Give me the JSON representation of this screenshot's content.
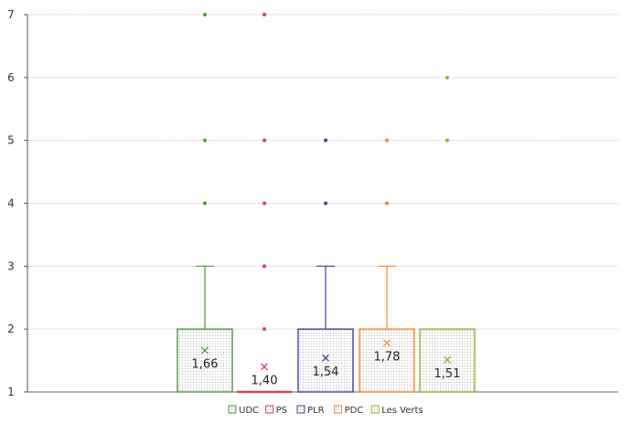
{
  "chart_data": {
    "type": "box",
    "title": "",
    "xlabel": "",
    "ylabel": "",
    "ylim": [
      1,
      7
    ],
    "y_ticks": [
      "1",
      "2",
      "3",
      "4",
      "5",
      "6",
      "7"
    ],
    "grid": "horizontal",
    "legend_position": "bottom-center",
    "series": [
      {
        "name": "UDC",
        "color": "#4a9a3c",
        "q1": 1,
        "median": 1,
        "q3": 2,
        "whisker_low": 1,
        "whisker_high": 3,
        "mean": 1.66,
        "mean_label": "1,66",
        "outliers": [
          4,
          5,
          7
        ]
      },
      {
        "name": "PS",
        "color": "#d94055",
        "q1": 1,
        "median": 1,
        "q3": 1,
        "whisker_low": 1,
        "whisker_high": 1,
        "mean": 1.4,
        "mean_label": "1,40",
        "outliers": [
          2,
          3,
          4,
          5,
          7
        ]
      },
      {
        "name": "PLR",
        "color": "#3c3fa0",
        "q1": 1,
        "median": 1,
        "q3": 2,
        "whisker_low": 1,
        "whisker_high": 3,
        "mean": 1.54,
        "mean_label": "1,54",
        "outliers": [
          4,
          5
        ]
      },
      {
        "name": "PDC",
        "color": "#f08a2c",
        "q1": 1,
        "median": 1,
        "q3": 2,
        "whisker_low": 1,
        "whisker_high": 3,
        "mean": 1.78,
        "mean_label": "1,78",
        "outliers": [
          4,
          5
        ]
      },
      {
        "name": "Les Verts",
        "color": "#8ab82a",
        "q1": 1,
        "median": 1,
        "q3": 2,
        "whisker_low": 1,
        "whisker_high": 2,
        "mean": 1.51,
        "mean_label": "1,51",
        "outliers": [
          5,
          6
        ]
      }
    ]
  }
}
